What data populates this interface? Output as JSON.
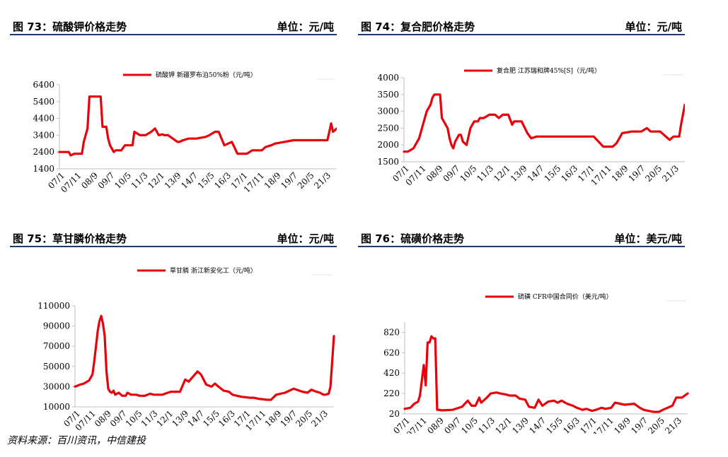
{
  "panels": [
    {
      "title": "图 73：硫酸钾价格走势",
      "unit": "单位：元/吨"
    },
    {
      "title": "图 74：复合肥价格走势",
      "unit": "单位：元/吨"
    },
    {
      "title": "图 75：草甘膦价格走势",
      "unit": "单位：元/吨"
    },
    {
      "title": "图 76：硫磺价格走势",
      "unit": "单位：美元/吨"
    }
  ],
  "source": "资料来源：百川资讯，中信建投",
  "colors": {
    "series": "#e8000b",
    "header_rule": "#1f3a68",
    "axis": "#bfbfbf"
  },
  "chart_data": [
    {
      "type": "line",
      "ylim": [
        1400,
        6400
      ],
      "yticks": [
        1400,
        2400,
        3400,
        4400,
        5400,
        6400
      ],
      "x_labels": [
        "07/1",
        "07/11",
        "08/9",
        "09/7",
        "10/5",
        "11/3",
        "12/1",
        "13/9",
        "14/7",
        "15/5",
        "16/3",
        "17/1",
        "17/11",
        "18/9",
        "19/7",
        "20/5",
        "21/3"
      ],
      "x_range": [
        0,
        14.8
      ],
      "series": [
        {
          "name": "硫酸钾 新疆罗布泊50%粉（元/吨）",
          "x": [
            0,
            0.5,
            0.6,
            0.8,
            1.2,
            1.3,
            1.5,
            1.6,
            2.0,
            2.2,
            2.3,
            2.5,
            2.6,
            2.7,
            2.9,
            3.0,
            3.1,
            3.3,
            3.5,
            3.9,
            4.0,
            4.3,
            4.4,
            4.6,
            4.9,
            5.1,
            5.3,
            5.5,
            5.6,
            5.8,
            6.3,
            6.4,
            6.6,
            6.9,
            7.0,
            7.3,
            7.8,
            8.0,
            8.3,
            8.5,
            8.8,
            9.2,
            9.5,
            9.8,
            10.0,
            10.3,
            10.8,
            11.0,
            11.3,
            11.5,
            12.0,
            12.5,
            13.0,
            13.5,
            14.0,
            14.2,
            14.3,
            14.5,
            14.6,
            14.8
          ],
          "values": [
            2400,
            2400,
            2200,
            2300,
            2300,
            3000,
            3800,
            5700,
            5700,
            5700,
            3900,
            3900,
            3200,
            2800,
            2400,
            2500,
            2500,
            2500,
            2800,
            2800,
            3600,
            3400,
            3400,
            3400,
            3600,
            3800,
            3400,
            3450,
            3400,
            3400,
            3000,
            3000,
            3100,
            3200,
            3200,
            3200,
            3300,
            3400,
            3600,
            3600,
            2800,
            3000,
            2300,
            2300,
            2300,
            2500,
            2500,
            2700,
            2800,
            2900,
            3000,
            3100,
            3100,
            3100,
            3100,
            3100,
            3100,
            4100,
            3600,
            3800
          ]
        }
      ]
    },
    {
      "type": "line",
      "ylim": [
        1500,
        4000
      ],
      "yticks": [
        1500,
        2000,
        2500,
        3000,
        3500,
        4000
      ],
      "x_labels": [
        "07/1",
        "07/11",
        "08/9",
        "09/7",
        "10/5",
        "11/3",
        "12/1",
        "13/9",
        "14/7",
        "15/5",
        "16/3",
        "17/1",
        "17/11",
        "18/9",
        "19/7",
        "20/5",
        "21/3"
      ],
      "x_range": [
        0,
        14.8
      ],
      "series": [
        {
          "name": "复合肥 江苏瑞和牌45%[S]（元/吨）",
          "x": [
            0,
            0.2,
            0.5,
            0.8,
            1.0,
            1.2,
            1.4,
            1.5,
            1.6,
            1.7,
            1.8,
            1.9,
            2.0,
            2.1,
            2.3,
            2.4,
            2.5,
            2.6,
            2.7,
            2.8,
            2.9,
            3.0,
            3.1,
            3.2,
            3.3,
            3.5,
            3.7,
            3.9,
            4.0,
            4.2,
            4.5,
            4.8,
            5.0,
            5.2,
            5.3,
            5.5,
            5.7,
            5.8,
            6.0,
            6.2,
            6.5,
            6.7,
            7.0,
            7.5,
            8.0,
            8.5,
            9.0,
            9.5,
            10.0,
            10.5,
            11.0,
            11.2,
            11.5,
            12.0,
            12.5,
            12.8,
            13.0,
            13.5,
            14.0,
            14.2,
            14.3,
            14.5,
            14.6,
            14.8
          ],
          "values": [
            1800,
            1800,
            1900,
            2200,
            2600,
            3000,
            3200,
            3400,
            3500,
            3500,
            3500,
            3500,
            2800,
            2700,
            2500,
            2200,
            2000,
            1900,
            2100,
            2200,
            2300,
            2300,
            2100,
            2050,
            2000,
            2500,
            2700,
            2700,
            2800,
            2800,
            2900,
            2900,
            2800,
            2900,
            2900,
            2900,
            2600,
            2700,
            2700,
            2700,
            2350,
            2200,
            2250,
            2250,
            2250,
            2250,
            2250,
            2250,
            2250,
            1950,
            1950,
            2050,
            2350,
            2400,
            2400,
            2500,
            2400,
            2400,
            2150,
            2250,
            2250,
            2250,
            2600,
            3200
          ]
        }
      ]
    },
    {
      "type": "line",
      "ylim": [
        10000,
        110000
      ],
      "yticks": [
        10000,
        30000,
        50000,
        70000,
        90000,
        110000
      ],
      "x_labels": [
        "07/1",
        "07/11",
        "08/9",
        "09/7",
        "10/5",
        "11/3",
        "12/1",
        "13/9",
        "14/7",
        "15/5",
        "16/3",
        "17/1",
        "17/11",
        "18/9",
        "19/7",
        "20/5",
        "21/3"
      ],
      "x_range": [
        0,
        14.8
      ],
      "series": [
        {
          "name": "草甘膦 浙江新安化工（元/吨）",
          "x": [
            0,
            0.3,
            0.5,
            0.8,
            1.0,
            1.1,
            1.2,
            1.3,
            1.4,
            1.5,
            1.6,
            1.7,
            1.8,
            1.9,
            2.0,
            2.1,
            2.2,
            2.3,
            2.5,
            2.7,
            2.9,
            3.0,
            3.2,
            3.5,
            3.7,
            4.0,
            4.3,
            4.5,
            5.0,
            5.3,
            5.5,
            6.0,
            6.3,
            6.5,
            7.0,
            7.2,
            7.5,
            7.8,
            8.0,
            8.2,
            8.5,
            8.8,
            9.0,
            9.5,
            10.0,
            10.2,
            10.5,
            11.0,
            11.2,
            11.5,
            12.0,
            12.5,
            13.0,
            13.3,
            13.5,
            13.8,
            14.0,
            14.2,
            14.3,
            14.5,
            14.6,
            14.8
          ],
          "values": [
            30000,
            32000,
            33000,
            36000,
            42000,
            55000,
            70000,
            85000,
            95000,
            100000,
            92000,
            80000,
            45000,
            28000,
            25000,
            24000,
            26000,
            22000,
            24000,
            21000,
            21000,
            24000,
            22000,
            22000,
            21000,
            21000,
            23000,
            22000,
            22000,
            24000,
            25000,
            25000,
            37000,
            35000,
            45000,
            42000,
            32000,
            30000,
            33000,
            30000,
            26000,
            25000,
            22000,
            20000,
            19000,
            19000,
            18000,
            17000,
            17000,
            22000,
            24000,
            28000,
            25000,
            24000,
            27000,
            25000,
            24000,
            22000,
            22000,
            23000,
            30000,
            80000
          ]
        }
      ]
    },
    {
      "type": "line",
      "ylim": [
        20,
        920
      ],
      "yticks": [
        20,
        220,
        420,
        620,
        820
      ],
      "x_labels": [
        "07/1",
        "07/11",
        "08/9",
        "09/7",
        "10/5",
        "11/3",
        "12/1",
        "13/9",
        "14/7",
        "15/5",
        "16/3",
        "17/1",
        "17/11",
        "18/9",
        "19/7",
        "20/5",
        "21/3"
      ],
      "x_range": [
        0,
        14.8
      ],
      "series": [
        {
          "name": "硫磺 CFR中国合同价（美元/吨）",
          "x": [
            0,
            0.3,
            0.5,
            0.7,
            0.8,
            1.0,
            1.1,
            1.2,
            1.3,
            1.4,
            1.5,
            1.6,
            1.7,
            1.8,
            1.9,
            2.0,
            2.5,
            3.0,
            3.3,
            3.5,
            3.7,
            3.9,
            4.0,
            4.3,
            4.5,
            4.8,
            5.0,
            5.3,
            5.5,
            5.8,
            6.0,
            6.3,
            6.5,
            6.8,
            7.0,
            7.2,
            7.5,
            7.8,
            8.0,
            8.2,
            8.5,
            8.8,
            9.0,
            9.3,
            9.5,
            9.8,
            10.0,
            10.3,
            10.5,
            10.8,
            11.0,
            11.5,
            12.0,
            12.3,
            12.5,
            13.0,
            13.3,
            13.5,
            14.0,
            14.2,
            14.5,
            14.8
          ],
          "values": [
            70,
            80,
            120,
            140,
            200,
            500,
            300,
            720,
            720,
            780,
            760,
            760,
            60,
            60,
            55,
            55,
            60,
            90,
            150,
            100,
            100,
            180,
            130,
            180,
            220,
            230,
            220,
            210,
            200,
            200,
            170,
            160,
            90,
            80,
            160,
            100,
            140,
            150,
            130,
            150,
            120,
            100,
            80,
            60,
            70,
            50,
            60,
            80,
            70,
            80,
            130,
            110,
            120,
            80,
            60,
            40,
            40,
            60,
            100,
            180,
            180,
            220
          ]
        }
      ]
    }
  ]
}
